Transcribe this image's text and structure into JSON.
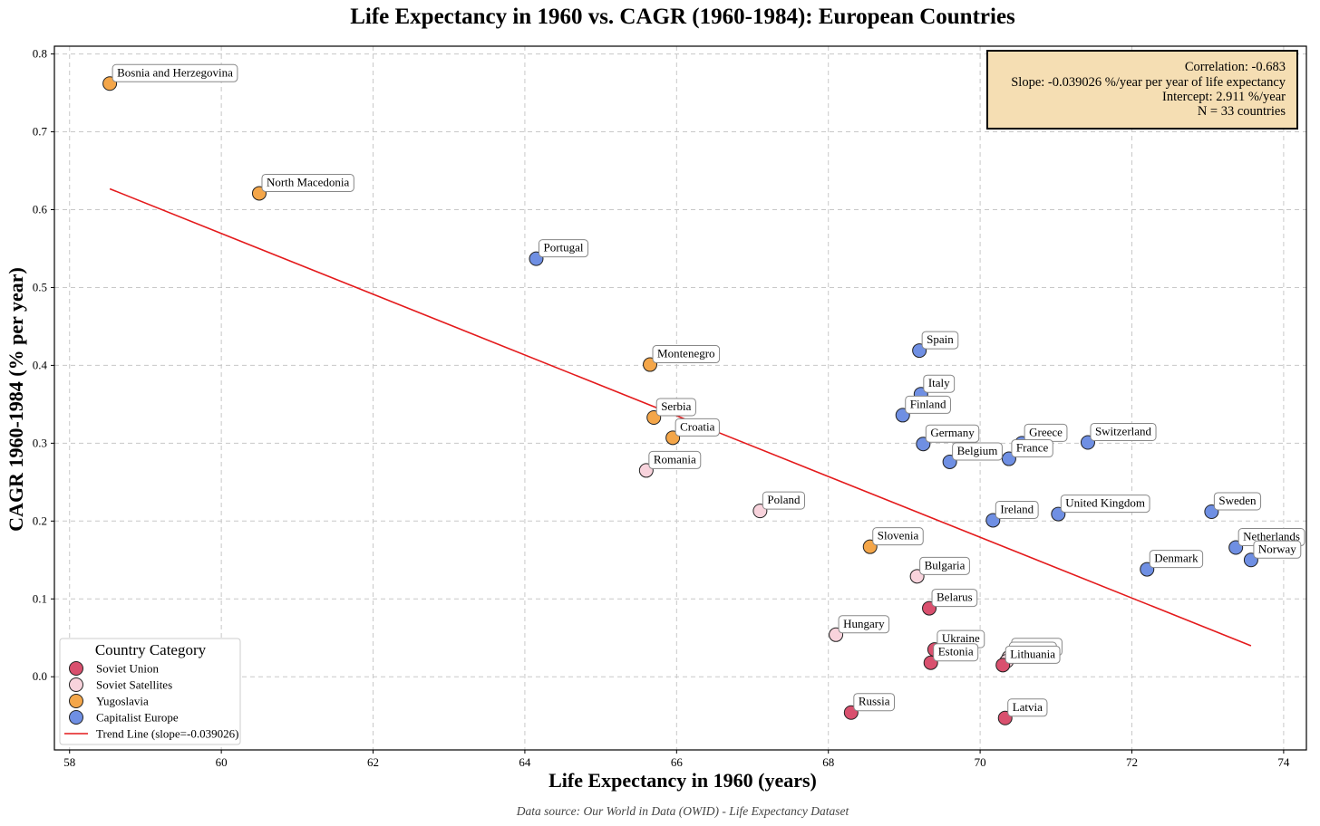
{
  "chart_data": {
    "type": "scatter",
    "title": "Life Expectancy in 1960 vs. CAGR (1960-1984): European Countries",
    "xlabel": "Life Expectancy in 1960 (years)",
    "ylabel": "CAGR 1960-1984 (% per year)",
    "xlim": [
      57.8,
      74.3
    ],
    "ylim": [
      -0.094,
      0.81
    ],
    "xticks": [
      58,
      60,
      62,
      64,
      66,
      68,
      70,
      72,
      74
    ],
    "xtick_labels": [
      "58",
      "60",
      "62",
      "64",
      "66",
      "68",
      "70",
      "72",
      "74"
    ],
    "yticks": [
      0.0,
      0.1,
      0.2,
      0.3,
      0.4,
      0.5,
      0.6,
      0.7,
      0.8
    ],
    "ytick_labels": [
      "0.0",
      "0.1",
      "0.2",
      "0.3",
      "0.4",
      "0.5",
      "0.6",
      "0.7",
      "0.8"
    ],
    "grid": true,
    "legend_position": "bottom-left",
    "legend_title": "Country Category",
    "categories": [
      {
        "name": "Soviet Union",
        "color": "#d9506e"
      },
      {
        "name": "Soviet Satellites",
        "color": "#f8d3dc"
      },
      {
        "name": "Yugoslavia",
        "color": "#f4a649"
      },
      {
        "name": "Capitalist Europe",
        "color": "#6f8fe3"
      }
    ],
    "points": [
      {
        "label": "Bosnia and Herzegovina",
        "category": "Yugoslavia",
        "x": 58.53,
        "y": 0.762
      },
      {
        "label": "North Macedonia",
        "category": "Yugoslavia",
        "x": 60.5,
        "y": 0.621
      },
      {
        "label": "Portugal",
        "category": "Capitalist Europe",
        "x": 64.15,
        "y": 0.537
      },
      {
        "label": "Montenegro",
        "category": "Yugoslavia",
        "x": 65.65,
        "y": 0.401
      },
      {
        "label": "Serbia",
        "category": "Yugoslavia",
        "x": 65.7,
        "y": 0.333
      },
      {
        "label": "Croatia",
        "category": "Yugoslavia",
        "x": 65.95,
        "y": 0.307
      },
      {
        "label": "Romania",
        "category": "Soviet Satellites",
        "x": 65.6,
        "y": 0.265
      },
      {
        "label": "Poland",
        "category": "Soviet Satellites",
        "x": 67.1,
        "y": 0.213
      },
      {
        "label": "Slovenia",
        "category": "Yugoslavia",
        "x": 68.55,
        "y": 0.167
      },
      {
        "label": "Hungary",
        "category": "Soviet Satellites",
        "x": 68.1,
        "y": 0.054
      },
      {
        "label": "Russia",
        "category": "Soviet Union",
        "x": 68.3,
        "y": -0.046
      },
      {
        "label": "Spain",
        "category": "Capitalist Europe",
        "x": 69.2,
        "y": 0.419
      },
      {
        "label": "Italy",
        "category": "Capitalist Europe",
        "x": 69.22,
        "y": 0.363
      },
      {
        "label": "Finland",
        "category": "Capitalist Europe",
        "x": 68.98,
        "y": 0.336
      },
      {
        "label": "Germany",
        "category": "Capitalist Europe",
        "x": 69.25,
        "y": 0.299
      },
      {
        "label": "Belgium",
        "category": "Capitalist Europe",
        "x": 69.6,
        "y": 0.276
      },
      {
        "label": "Bulgaria",
        "category": "Soviet Satellites",
        "x": 69.17,
        "y": 0.129
      },
      {
        "label": "Belarus",
        "category": "Soviet Union",
        "x": 69.33,
        "y": 0.088
      },
      {
        "label": "Ukraine",
        "category": "Soviet Union",
        "x": 69.4,
        "y": 0.035
      },
      {
        "label": "Estonia",
        "category": "Soviet Union",
        "x": 69.35,
        "y": 0.018
      },
      {
        "label": "Greece",
        "category": "Capitalist Europe",
        "x": 70.55,
        "y": 0.3
      },
      {
        "label": "France",
        "category": "Capitalist Europe",
        "x": 70.38,
        "y": 0.28
      },
      {
        "label": "Switzerland",
        "category": "Capitalist Europe",
        "x": 71.42,
        "y": 0.301
      },
      {
        "label": "Ireland",
        "category": "Capitalist Europe",
        "x": 70.17,
        "y": 0.201
      },
      {
        "label": "United Kingdom",
        "category": "Capitalist Europe",
        "x": 71.03,
        "y": 0.209
      },
      {
        "label": "Slovakia",
        "category": "Soviet Satellites",
        "x": 70.38,
        "y": 0.025
      },
      {
        "label": "Czechia",
        "category": "Soviet Satellites",
        "x": 70.35,
        "y": 0.02
      },
      {
        "label": "Lithuania",
        "category": "Soviet Union",
        "x": 70.3,
        "y": 0.015
      },
      {
        "label": "Latvia",
        "category": "Soviet Union",
        "x": 70.33,
        "y": -0.053
      },
      {
        "label": "Sweden",
        "category": "Capitalist Europe",
        "x": 73.05,
        "y": 0.212
      },
      {
        "label": "Netherlands",
        "category": "Capitalist Europe",
        "x": 73.37,
        "y": 0.166
      },
      {
        "label": "Norway",
        "category": "Capitalist Europe",
        "x": 73.57,
        "y": 0.15
      },
      {
        "label": "Denmark",
        "category": "Capitalist Europe",
        "x": 72.2,
        "y": 0.138
      }
    ],
    "trend_line": {
      "name": "Trend Line (slope=-0.039026)",
      "color": "#e41a1c",
      "slope": -0.039026,
      "intercept": 2.911,
      "x_start": 58.53,
      "x_end": 73.57
    },
    "stats_box": {
      "lines": [
        "Correlation: -0.683",
        "Slope: -0.039026 %/year per year of life expectancy",
        "Intercept: 2.911 %/year",
        "N = 33 countries"
      ],
      "background": "#f5deb3"
    },
    "source_note": "Data source: Our World in Data (OWID) - Life Expectancy Dataset"
  }
}
